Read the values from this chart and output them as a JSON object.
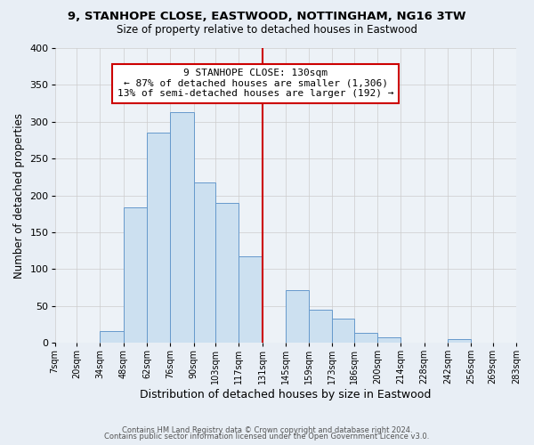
{
  "title1": "9, STANHOPE CLOSE, EASTWOOD, NOTTINGHAM, NG16 3TW",
  "title2": "Size of property relative to detached houses in Eastwood",
  "xlabel": "Distribution of detached houses by size in Eastwood",
  "ylabel": "Number of detached properties",
  "bin_edges": [
    7,
    20,
    34,
    48,
    62,
    76,
    90,
    103,
    117,
    131,
    145,
    159,
    173,
    186,
    200,
    214,
    228,
    242,
    256,
    269,
    283
  ],
  "bar_heights": [
    0,
    0,
    16,
    184,
    285,
    313,
    217,
    190,
    117,
    0,
    71,
    45,
    33,
    13,
    8,
    0,
    0,
    5,
    0,
    0
  ],
  "bar_color": "#cce0f0",
  "bar_edge_color": "#6699cc",
  "vline_x": 131,
  "vline_color": "#cc0000",
  "annotation_title": "9 STANHOPE CLOSE: 130sqm",
  "annotation_line1": "← 87% of detached houses are smaller (1,306)",
  "annotation_line2": "13% of semi-detached houses are larger (192) →",
  "annotation_box_color": "#ffffff",
  "annotation_box_edge": "#cc0000",
  "tick_labels": [
    "7sqm",
    "20sqm",
    "34sqm",
    "48sqm",
    "62sqm",
    "76sqm",
    "90sqm",
    "103sqm",
    "117sqm",
    "131sqm",
    "145sqm",
    "159sqm",
    "173sqm",
    "186sqm",
    "200sqm",
    "214sqm",
    "228sqm",
    "242sqm",
    "256sqm",
    "269sqm",
    "283sqm"
  ],
  "ylim": [
    0,
    400
  ],
  "yticks": [
    0,
    50,
    100,
    150,
    200,
    250,
    300,
    350,
    400
  ],
  "footer1": "Contains HM Land Registry data © Crown copyright and database right 2024.",
  "footer2": "Contains public sector information licensed under the Open Government Licence v3.0.",
  "fig_background": "#e8eef5",
  "plot_background": "#edf2f7",
  "title1_fontsize": 9.5,
  "title2_fontsize": 8.5,
  "ylabel_fontsize": 8.5,
  "xlabel_fontsize": 9,
  "annotation_fontsize": 8,
  "tick_fontsize": 7,
  "ytick_fontsize": 8,
  "footer_fontsize": 6
}
